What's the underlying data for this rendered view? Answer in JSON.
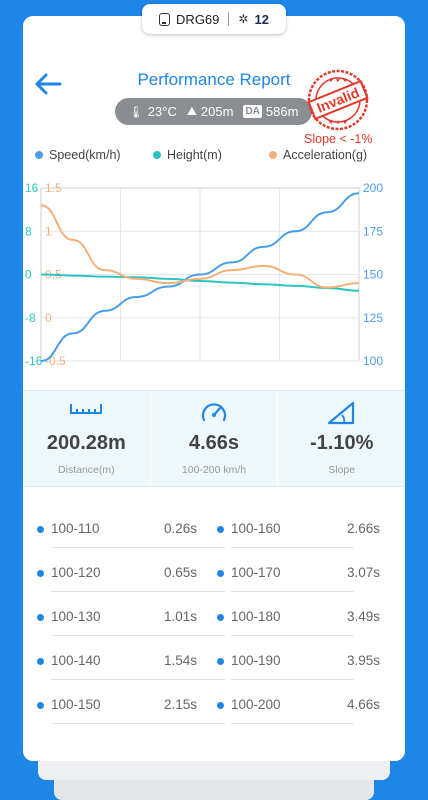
{
  "device": {
    "name": "DRG69",
    "satellites": "12"
  },
  "header": {
    "title": "Performance Report",
    "stamp_text": "Invalid",
    "stamp_note": "Slope < -1%"
  },
  "conditions": {
    "temperature": "23°C",
    "altitude": "205m",
    "da_label": "DA",
    "density_altitude": "586m"
  },
  "legend": [
    {
      "label": "Speed(km/h)",
      "color": "#4a9ee8"
    },
    {
      "label": "Height(m)",
      "color": "#2bc4c4"
    },
    {
      "label": "Acceleration(g)",
      "color": "#f5b07a"
    }
  ],
  "chart_data": {
    "type": "line",
    "x": [
      0,
      10,
      20,
      30,
      40,
      50,
      60,
      70,
      80,
      90,
      100
    ],
    "series": [
      {
        "name": "Speed(km/h)",
        "axis": "right-blue",
        "values": [
          100,
          116,
          129,
          137,
          143,
          150,
          157,
          166,
          175,
          186,
          197
        ]
      },
      {
        "name": "Height(m)",
        "axis": "left-teal",
        "values": [
          0,
          -0.2,
          -0.4,
          -0.5,
          -0.8,
          -1.2,
          -1.5,
          -1.8,
          -2.1,
          -2.5,
          -3.0
        ]
      },
      {
        "name": "Acceleration(g)",
        "axis": "left-orange",
        "values": [
          1.3,
          0.9,
          0.55,
          0.45,
          0.4,
          0.45,
          0.55,
          0.6,
          0.5,
          0.35,
          0.4
        ]
      }
    ],
    "axes": {
      "left_teal_ticks": [
        "16",
        "8",
        "0",
        "-8",
        "-16"
      ],
      "left_orange_ticks": [
        "1.5",
        "1",
        "0.5",
        "0",
        "-0.5"
      ],
      "right_blue_ticks": [
        "200",
        "175",
        "150",
        "125",
        "100"
      ]
    },
    "ylim_speed": [
      100,
      200
    ],
    "ylim_height": [
      -16,
      16
    ],
    "ylim_accel": [
      -0.5,
      1.5
    ],
    "grid": true
  },
  "metrics": [
    {
      "value": "200.28m",
      "label": "Distance(m)"
    },
    {
      "value": "4.66s",
      "label": "100-200 km/h"
    },
    {
      "value": "-1.10%",
      "label": "Slope"
    }
  ],
  "splits": [
    [
      {
        "range": "100-110",
        "time": "0.26s"
      },
      {
        "range": "100-160",
        "time": "2.66s"
      }
    ],
    [
      {
        "range": "100-120",
        "time": "0.65s"
      },
      {
        "range": "100-170",
        "time": "3.07s"
      }
    ],
    [
      {
        "range": "100-130",
        "time": "1.01s"
      },
      {
        "range": "100-180",
        "time": "3.49s"
      }
    ],
    [
      {
        "range": "100-140",
        "time": "1.54s"
      },
      {
        "range": "100-190",
        "time": "3.95s"
      }
    ],
    [
      {
        "range": "100-150",
        "time": "2.15s"
      },
      {
        "range": "100-200",
        "time": "4.66s"
      }
    ]
  ]
}
